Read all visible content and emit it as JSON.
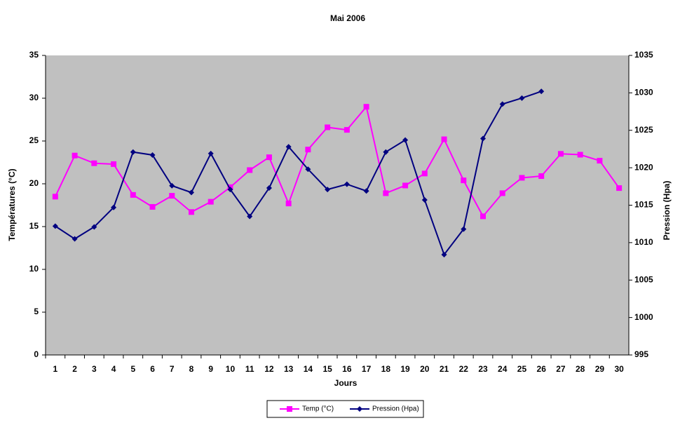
{
  "chart_data": {
    "type": "line",
    "title": "Mai 2006",
    "x_label": "Jours",
    "y_label": "Températures (°C)",
    "y2_label": "Pression (Hpa)",
    "categories": [
      "1",
      "2",
      "3",
      "4",
      "5",
      "6",
      "7",
      "8",
      "9",
      "10",
      "11",
      "12",
      "13",
      "14",
      "15",
      "16",
      "17",
      "18",
      "19",
      "20",
      "21",
      "22",
      "23",
      "24",
      "25",
      "26",
      "27",
      "28",
      "29",
      "30"
    ],
    "series": [
      {
        "name": "Temp (°C)",
        "color": "#ff00ff",
        "marker": "square",
        "values": [
          18.5,
          23.3,
          22.4,
          22.3,
          18.7,
          17.3,
          18.6,
          16.7,
          17.9,
          19.6,
          21.6,
          23.1,
          17.7,
          24.0,
          26.6,
          26.3,
          29.0,
          18.9,
          19.8,
          21.2,
          25.2,
          20.4,
          16.2,
          18.9,
          20.7,
          20.9,
          23.5,
          23.4,
          22.7,
          19.5
        ]
      },
      {
        "name": "Pression (Hpa)",
        "color": "#000080",
        "marker": "diamond",
        "axis": "y2",
        "values": [
          1012.2,
          1010.5,
          1012.1,
          1014.7,
          1022.1,
          1021.7,
          1017.6,
          1016.7,
          1021.9,
          1017.1,
          1013.5,
          1017.3,
          1022.8,
          1019.8,
          1017.1,
          1017.8,
          1016.9,
          1022.1,
          1023.7,
          1015.7,
          1008.4,
          1011.8,
          1023.9,
          1028.5,
          1029.3,
          1030.2,
          null,
          null,
          null,
          null
        ]
      }
    ],
    "ylim": [
      0,
      35
    ],
    "yticks": [
      0,
      5,
      10,
      15,
      20,
      25,
      30,
      35
    ],
    "y2lim": [
      995,
      1035
    ],
    "y2ticks": [
      995,
      1000,
      1005,
      1010,
      1015,
      1020,
      1025,
      1030,
      1035
    ],
    "plot_background": "#c0c0c0",
    "grid": false,
    "legend": "bottom"
  }
}
